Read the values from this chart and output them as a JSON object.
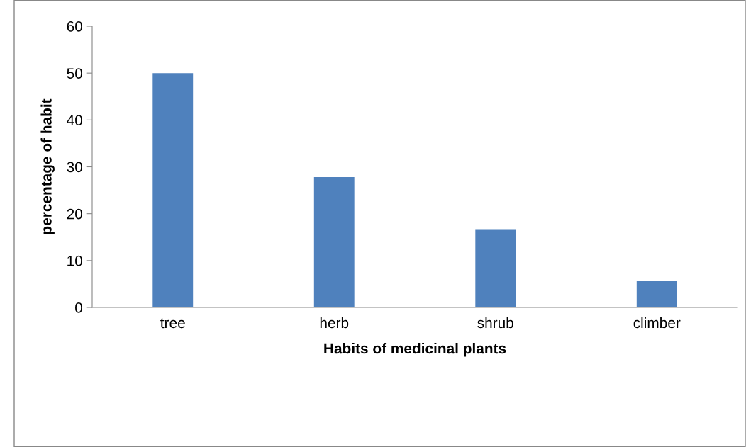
{
  "chart_data": {
    "type": "bar",
    "xlabel": "Habits of medicinal plants",
    "ylabel": "percentage of habit",
    "categories": [
      "tree",
      "herb",
      "shrub",
      "climber"
    ],
    "values": [
      50,
      27.8,
      16.7,
      5.6
    ],
    "color": "#4f81bd",
    "ylim": [
      0,
      60
    ],
    "yticks": [
      0,
      10,
      20,
      30,
      40,
      50,
      60
    ],
    "grid": false,
    "legend": false
  }
}
